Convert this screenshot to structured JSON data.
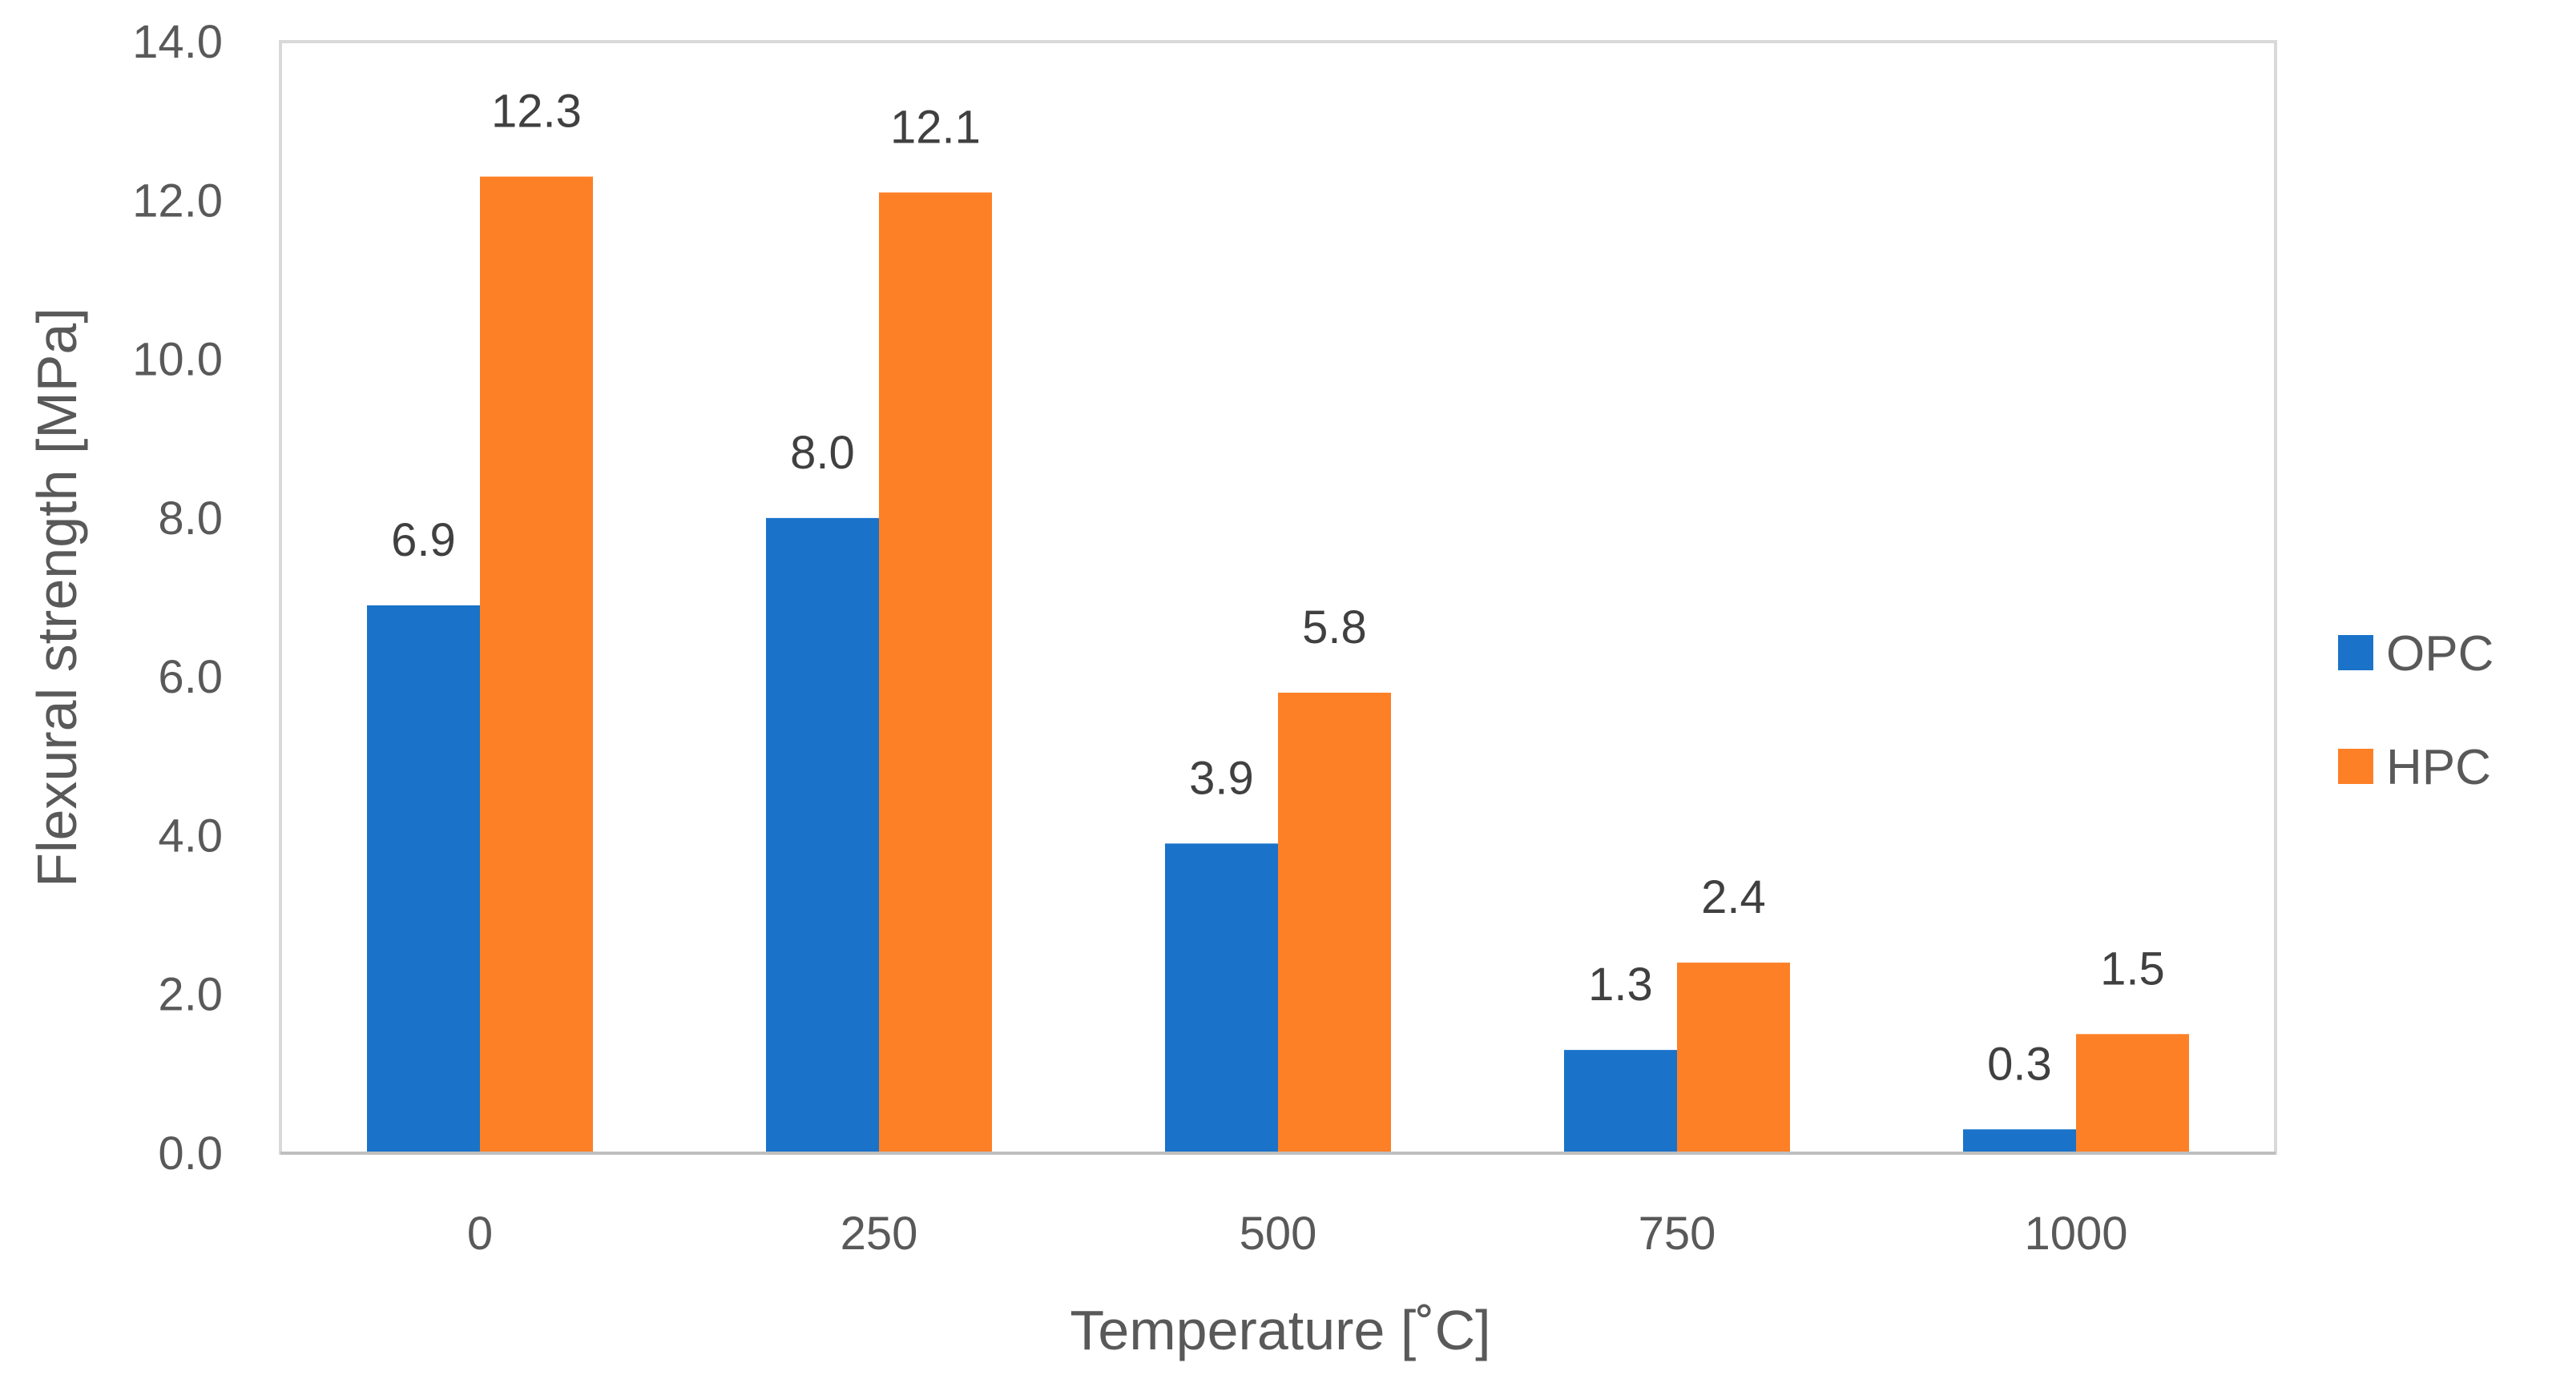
{
  "chart_data": {
    "type": "bar",
    "title": "",
    "xlabel": "Temperature [˚C]",
    "ylabel": "Flexural strength [MPa]",
    "ylim": [
      0,
      14
    ],
    "y_ticks": [
      "0.0",
      "2.0",
      "4.0",
      "6.0",
      "8.0",
      "10.0",
      "12.0",
      "14.0"
    ],
    "y_tick_values": [
      0,
      2,
      4,
      6,
      8,
      10,
      12,
      14
    ],
    "categories": [
      "0",
      "250",
      "500",
      "750",
      "1000"
    ],
    "series": [
      {
        "name": "OPC",
        "color": "#1a73c9",
        "values": [
          6.9,
          8.0,
          3.9,
          1.3,
          0.3
        ],
        "labels": [
          "6.9",
          "8.0",
          "3.9",
          "1.3",
          "0.3"
        ]
      },
      {
        "name": "HPC",
        "color": "#fd8026",
        "values": [
          12.3,
          12.1,
          5.8,
          2.4,
          1.5
        ],
        "labels": [
          "12.3",
          "12.1",
          "5.8",
          "2.4",
          "1.5"
        ]
      }
    ],
    "grid": false,
    "legend_position": "right"
  }
}
